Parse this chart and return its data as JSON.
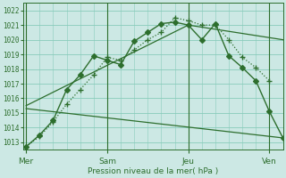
{
  "background_color": "#cce8e4",
  "grid_color": "#88ccbb",
  "line_color": "#2d6e2d",
  "title": "Pression niveau de la mer( hPa )",
  "ylim": [
    1012.5,
    1022.5
  ],
  "yticks": [
    1013,
    1014,
    1015,
    1016,
    1017,
    1018,
    1019,
    1020,
    1021,
    1022
  ],
  "day_labels": [
    "Mer",
    "Sam",
    "Jeu",
    "Ven"
  ],
  "day_positions": [
    0,
    3,
    6,
    9
  ],
  "xlim": [
    -0.1,
    9.5
  ],
  "line1": {
    "x": [
      0,
      0.5,
      1.0,
      1.5,
      2.0,
      2.5,
      3.0,
      3.5,
      4.0,
      4.5,
      5.0,
      5.5,
      6.0,
      6.5,
      7.0,
      7.5,
      8.0,
      8.5,
      9.0
    ],
    "y": [
      1012.7,
      1013.4,
      1014.4,
      1015.6,
      1016.6,
      1017.6,
      1018.8,
      1018.6,
      1019.3,
      1020.0,
      1020.5,
      1021.5,
      1021.3,
      1021.0,
      1021.0,
      1020.0,
      1018.8,
      1018.1,
      1017.2
    ],
    "linestyle": "dotted",
    "marker": "+"
  },
  "line2": {
    "x": [
      0,
      0.5,
      1.0,
      1.5,
      2.0,
      2.5,
      3.0,
      3.5,
      4.0,
      4.5,
      5.0,
      5.5,
      6.0,
      6.5,
      7.0,
      7.5,
      8.0,
      8.5,
      9.0,
      9.5
    ],
    "y": [
      1012.7,
      1013.5,
      1014.5,
      1016.6,
      1017.6,
      1018.9,
      1018.6,
      1018.3,
      1019.9,
      1020.5,
      1021.1,
      1021.2,
      1021.0,
      1020.0,
      1021.1,
      1018.9,
      1018.1,
      1017.2,
      1015.1,
      1013.3
    ],
    "linestyle": "solid",
    "marker": "D"
  },
  "line3": {
    "x": [
      0,
      6,
      9.5
    ],
    "y": [
      1015.5,
      1021.0,
      1020.0
    ],
    "linestyle": "solid",
    "marker": "none"
  },
  "line4": {
    "x": [
      0,
      9.5
    ],
    "y": [
      1015.3,
      1013.3
    ],
    "linestyle": "solid",
    "marker": "none"
  }
}
